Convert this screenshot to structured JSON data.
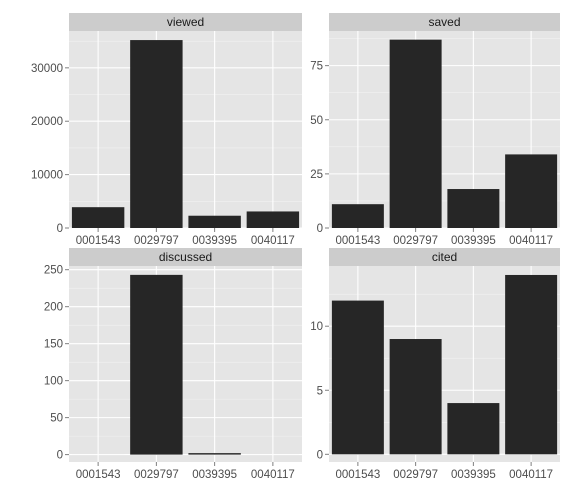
{
  "chart_data": [
    {
      "type": "bar",
      "title": "viewed",
      "categories": [
        "0001543",
        "0029797",
        "0039395",
        "0040117"
      ],
      "values": [
        3900,
        35200,
        2300,
        3100
      ],
      "ylim": [
        0,
        36900
      ],
      "yticks": [
        0,
        10000,
        20000,
        30000
      ],
      "ytick_labels": [
        "0",
        "10000",
        "20000",
        "30000"
      ],
      "grid": true
    },
    {
      "type": "bar",
      "title": "saved",
      "categories": [
        "0001543",
        "0029797",
        "0039395",
        "0040117"
      ],
      "values": [
        11,
        87,
        18,
        34
      ],
      "ylim": [
        0,
        91
      ],
      "yticks": [
        0,
        25,
        50,
        75
      ],
      "ytick_labels": [
        "0",
        "25",
        "50",
        "75"
      ],
      "grid": true
    },
    {
      "type": "bar",
      "title": "discussed",
      "categories": [
        "0001543",
        "0029797",
        "0039395",
        "0040117"
      ],
      "values": [
        0,
        243,
        2,
        0
      ],
      "ylim": [
        -10,
        255
      ],
      "yticks": [
        0,
        50,
        100,
        150,
        200,
        250
      ],
      "ytick_labels": [
        "0",
        "50",
        "100",
        "150",
        "200",
        "250"
      ],
      "grid": true
    },
    {
      "type": "bar",
      "title": "cited",
      "categories": [
        "0001543",
        "0029797",
        "0039395",
        "0040117"
      ],
      "values": [
        12,
        9,
        4,
        14
      ],
      "ylim": [
        -0.6,
        14.7
      ],
      "yticks": [
        0,
        5,
        10
      ],
      "ytick_labels": [
        "0",
        "5",
        "10"
      ],
      "grid": true
    }
  ],
  "colors": {
    "panel_background": "#e5e5e5",
    "strip_background": "#cccccc",
    "grid_major": "#ffffff",
    "grid_minor": "#f2f2f2",
    "bar_fill": "#262626",
    "tick_text": "#4d4d4d",
    "strip_text": "#1a1a1a"
  }
}
